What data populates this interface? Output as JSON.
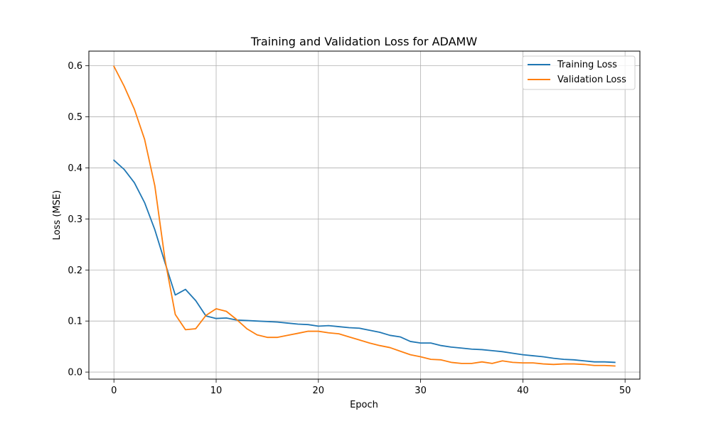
{
  "chart_data": {
    "type": "line",
    "title": "Training and Validation Loss for ADAMW",
    "xlabel": "Epoch",
    "ylabel": "Loss (MSE)",
    "xlim": [
      -2.45,
      51.45
    ],
    "ylim": [
      -0.0138,
      0.6287
    ],
    "xticks": [
      0,
      10,
      20,
      30,
      40,
      50
    ],
    "yticks": [
      0.0,
      0.1,
      0.2,
      0.3,
      0.4,
      0.5,
      0.6
    ],
    "xtick_labels": [
      "0",
      "10",
      "20",
      "30",
      "40",
      "50"
    ],
    "ytick_labels": [
      "0.0",
      "0.1",
      "0.2",
      "0.3",
      "0.4",
      "0.5",
      "0.6"
    ],
    "grid": true,
    "legend_position": "top-right",
    "x": [
      0,
      1,
      2,
      3,
      4,
      5,
      6,
      7,
      8,
      9,
      10,
      11,
      12,
      13,
      14,
      15,
      16,
      17,
      18,
      19,
      20,
      21,
      22,
      23,
      24,
      25,
      26,
      27,
      28,
      29,
      30,
      31,
      32,
      33,
      34,
      35,
      36,
      37,
      38,
      39,
      40,
      41,
      42,
      43,
      44,
      45,
      46,
      47,
      48,
      49
    ],
    "series": [
      {
        "name": "Training Loss",
        "color": "#1f77b4",
        "values": [
          0.415,
          0.397,
          0.371,
          0.332,
          0.279,
          0.214,
          0.151,
          0.162,
          0.14,
          0.11,
          0.105,
          0.106,
          0.102,
          0.101,
          0.1,
          0.099,
          0.098,
          0.096,
          0.094,
          0.093,
          0.09,
          0.091,
          0.089,
          0.087,
          0.086,
          0.082,
          0.078,
          0.072,
          0.069,
          0.06,
          0.057,
          0.057,
          0.052,
          0.049,
          0.047,
          0.045,
          0.044,
          0.042,
          0.04,
          0.037,
          0.034,
          0.032,
          0.03,
          0.027,
          0.025,
          0.024,
          0.022,
          0.02,
          0.02,
          0.019
        ]
      },
      {
        "name": "Validation Loss",
        "color": "#ff7f0e",
        "values": [
          0.599,
          0.56,
          0.515,
          0.456,
          0.365,
          0.22,
          0.113,
          0.083,
          0.085,
          0.111,
          0.124,
          0.119,
          0.103,
          0.085,
          0.073,
          0.068,
          0.068,
          0.072,
          0.076,
          0.08,
          0.08,
          0.077,
          0.075,
          0.069,
          0.063,
          0.057,
          0.052,
          0.048,
          0.041,
          0.034,
          0.03,
          0.025,
          0.024,
          0.019,
          0.017,
          0.017,
          0.02,
          0.017,
          0.022,
          0.019,
          0.018,
          0.018,
          0.016,
          0.015,
          0.016,
          0.016,
          0.015,
          0.013,
          0.013,
          0.012
        ]
      }
    ]
  }
}
